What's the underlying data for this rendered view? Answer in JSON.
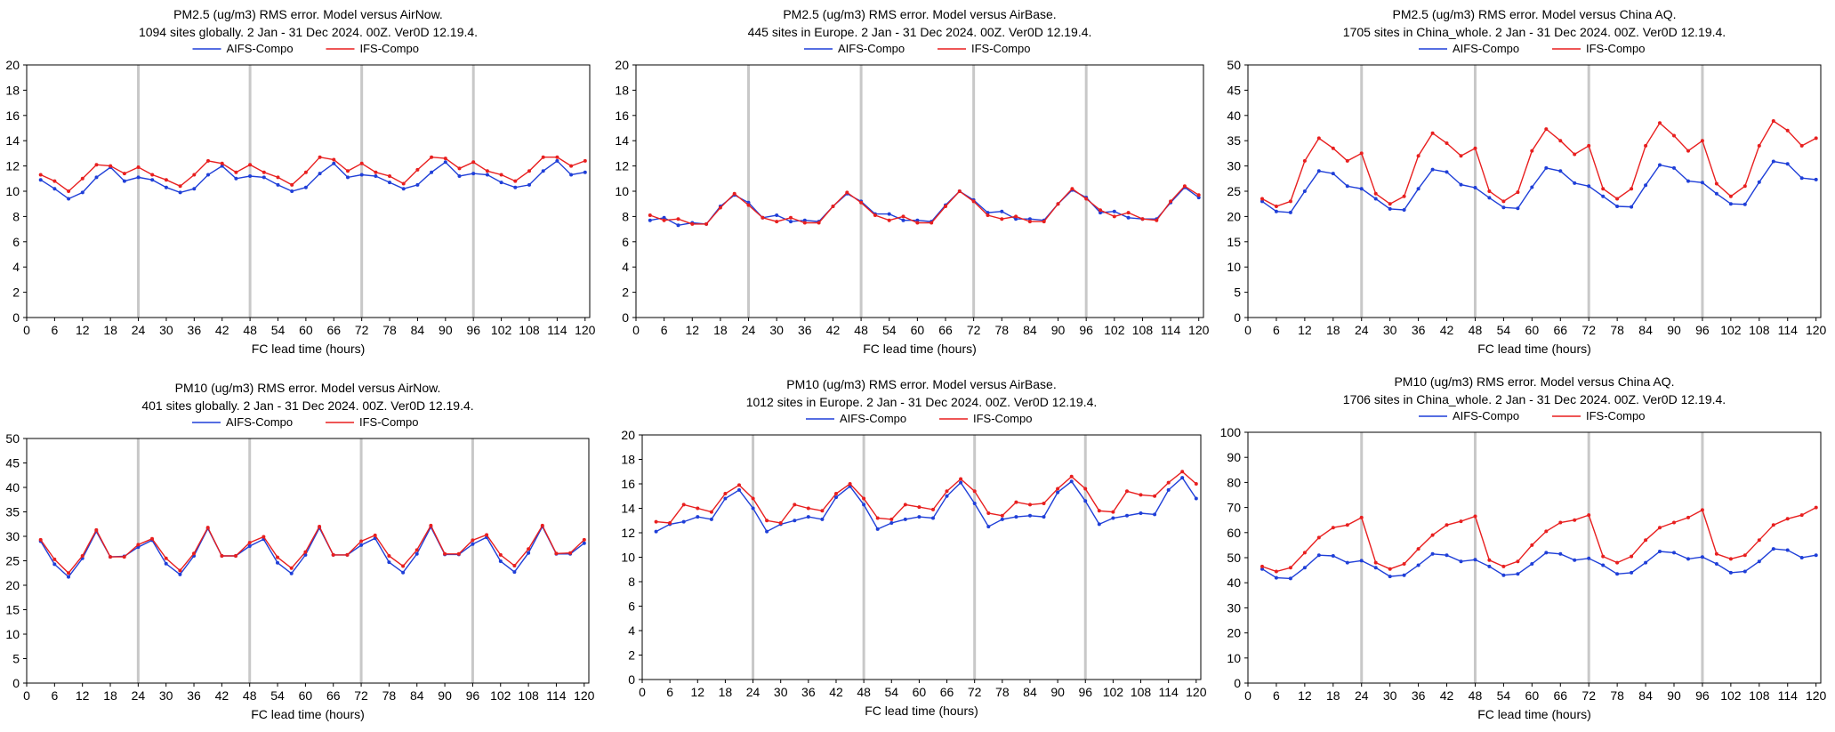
{
  "legend": {
    "aifs": "AIFS-Compo",
    "ifs": "IFS-Compo"
  },
  "colors": {
    "aifs": "#1f3fd8",
    "ifs": "#e81f1f"
  },
  "chart_data": [
    {
      "type": "line",
      "title": "PM2.5 (ug/m3) RMS error. Model versus AirNow.",
      "subtitle": "1094 sites globally. 2 Jan - 31 Dec 2024. 00Z. Ver0D 12.19.4.",
      "xlabel": "FC lead time (hours)",
      "ylabel": "",
      "xlim": [
        0,
        121
      ],
      "ylim": [
        0,
        20
      ],
      "xticks": [
        0,
        6,
        12,
        18,
        24,
        30,
        36,
        42,
        48,
        54,
        60,
        66,
        72,
        78,
        84,
        90,
        96,
        102,
        108,
        114,
        120
      ],
      "yticks": [
        0,
        2,
        4,
        6,
        8,
        10,
        12,
        14,
        16,
        18,
        20
      ],
      "grid": "vertical lines at 24,48,72,96",
      "legend_position": "top-center",
      "x": [
        3,
        6,
        9,
        12,
        15,
        18,
        21,
        24,
        27,
        30,
        33,
        36,
        39,
        42,
        45,
        48,
        51,
        54,
        57,
        60,
        63,
        66,
        69,
        72,
        75,
        78,
        81,
        84,
        87,
        90,
        93,
        96,
        99,
        102,
        105,
        108,
        111,
        114,
        117,
        120
      ],
      "series": [
        {
          "name": "AIFS-Compo",
          "values": [
            10.9,
            10.2,
            9.4,
            9.9,
            11.1,
            11.9,
            10.8,
            11.1,
            10.9,
            10.3,
            9.9,
            10.2,
            11.3,
            12.0,
            11.0,
            11.2,
            11.1,
            10.5,
            10.0,
            10.3,
            11.4,
            12.2,
            11.1,
            11.3,
            11.2,
            10.7,
            10.2,
            10.5,
            11.5,
            12.3,
            11.2,
            11.4,
            11.3,
            10.7,
            10.3,
            10.5,
            11.6,
            12.4,
            11.3,
            11.5
          ]
        },
        {
          "name": "IFS-Compo",
          "values": [
            11.3,
            10.8,
            10.0,
            11.0,
            12.1,
            12.0,
            11.4,
            11.9,
            11.3,
            10.9,
            10.4,
            11.3,
            12.4,
            12.2,
            11.5,
            12.1,
            11.5,
            11.1,
            10.5,
            11.5,
            12.7,
            12.5,
            11.6,
            12.2,
            11.5,
            11.2,
            10.6,
            11.7,
            12.7,
            12.6,
            11.8,
            12.3,
            11.6,
            11.3,
            10.8,
            11.6,
            12.7,
            12.7,
            12.0,
            12.4
          ]
        }
      ]
    },
    {
      "type": "line",
      "title": "PM2.5 (ug/m3) RMS error. Model versus AirBase.",
      "subtitle": "445 sites in Europe. 2 Jan - 31 Dec 2024. 00Z. Ver0D 12.19.4.",
      "xlabel": "FC lead time (hours)",
      "ylabel": "",
      "xlim": [
        0,
        121
      ],
      "ylim": [
        0,
        20
      ],
      "xticks": [
        0,
        6,
        12,
        18,
        24,
        30,
        36,
        42,
        48,
        54,
        60,
        66,
        72,
        78,
        84,
        90,
        96,
        102,
        108,
        114,
        120
      ],
      "yticks": [
        0,
        2,
        4,
        6,
        8,
        10,
        12,
        14,
        16,
        18,
        20
      ],
      "grid": "vertical lines at 24,48,72,96",
      "legend_position": "top-center",
      "x": [
        3,
        6,
        9,
        12,
        15,
        18,
        21,
        24,
        27,
        30,
        33,
        36,
        39,
        42,
        45,
        48,
        51,
        54,
        57,
        60,
        63,
        66,
        69,
        72,
        75,
        78,
        81,
        84,
        87,
        90,
        93,
        96,
        99,
        102,
        105,
        108,
        111,
        114,
        117,
        120
      ],
      "series": [
        {
          "name": "AIFS-Compo",
          "values": [
            7.7,
            7.9,
            7.3,
            7.5,
            7.4,
            8.8,
            9.7,
            9.1,
            7.9,
            8.1,
            7.6,
            7.7,
            7.6,
            8.8,
            9.8,
            9.2,
            8.2,
            8.2,
            7.7,
            7.7,
            7.6,
            8.9,
            10.0,
            9.3,
            8.3,
            8.4,
            7.8,
            7.8,
            7.7,
            9.0,
            10.1,
            9.5,
            8.3,
            8.4,
            7.9,
            7.8,
            7.8,
            9.1,
            10.3,
            9.5
          ]
        },
        {
          "name": "IFS-Compo",
          "values": [
            8.1,
            7.7,
            7.8,
            7.4,
            7.4,
            8.7,
            9.8,
            8.9,
            7.9,
            7.6,
            7.9,
            7.5,
            7.5,
            8.8,
            9.9,
            9.1,
            8.1,
            7.7,
            8.0,
            7.5,
            7.5,
            8.8,
            10.0,
            9.2,
            8.1,
            7.8,
            8.0,
            7.6,
            7.6,
            9.0,
            10.2,
            9.4,
            8.5,
            8.0,
            8.3,
            7.8,
            7.7,
            9.2,
            10.4,
            9.7
          ]
        }
      ]
    },
    {
      "type": "line",
      "title": "PM2.5 (ug/m3) RMS error. Model versus China AQ.",
      "subtitle": "1705 sites in China_whole. 2 Jan - 31 Dec 2024. 00Z. Ver0D 12.19.4.",
      "xlabel": "FC lead time (hours)",
      "ylabel": "",
      "xlim": [
        0,
        121
      ],
      "ylim": [
        0,
        50
      ],
      "xticks": [
        0,
        6,
        12,
        18,
        24,
        30,
        36,
        42,
        48,
        54,
        60,
        66,
        72,
        78,
        84,
        90,
        96,
        102,
        108,
        114,
        120
      ],
      "yticks": [
        0,
        5,
        10,
        15,
        20,
        25,
        30,
        35,
        40,
        45,
        50
      ],
      "grid": "vertical lines at 24,48,72,96",
      "legend_position": "top-center",
      "x": [
        3,
        6,
        9,
        12,
        15,
        18,
        21,
        24,
        27,
        30,
        33,
        36,
        39,
        42,
        45,
        48,
        51,
        54,
        57,
        60,
        63,
        66,
        69,
        72,
        75,
        78,
        81,
        84,
        87,
        90,
        93,
        96,
        99,
        102,
        105,
        108,
        111,
        114,
        117,
        120
      ],
      "series": [
        {
          "name": "AIFS-Compo",
          "values": [
            23.0,
            21.0,
            20.8,
            25.0,
            29.0,
            28.5,
            26.0,
            25.5,
            23.5,
            21.5,
            21.3,
            25.5,
            29.3,
            28.8,
            26.3,
            25.7,
            23.7,
            21.8,
            21.6,
            25.8,
            29.6,
            29.0,
            26.6,
            26.0,
            24.0,
            22.0,
            21.9,
            26.2,
            30.2,
            29.6,
            27.0,
            26.7,
            24.5,
            22.5,
            22.4,
            26.8,
            30.9,
            30.4,
            27.6,
            27.3
          ]
        },
        {
          "name": "IFS-Compo",
          "values": [
            23.5,
            22.0,
            23.0,
            31.0,
            35.5,
            33.5,
            31.0,
            32.5,
            24.5,
            22.5,
            24.0,
            32.0,
            36.5,
            34.5,
            32.0,
            33.5,
            25.0,
            23.0,
            24.8,
            33.0,
            37.3,
            35.0,
            32.3,
            34.0,
            25.5,
            23.5,
            25.5,
            34.0,
            38.5,
            36.0,
            33.0,
            35.0,
            26.5,
            24.0,
            26.0,
            34.0,
            38.9,
            37.0,
            34.0,
            35.5
          ]
        }
      ]
    },
    {
      "type": "line",
      "title": "PM10 (ug/m3) RMS error. Model versus AirNow.",
      "subtitle": "401 sites globally. 2 Jan - 31 Dec 2024. 00Z. Ver0D 12.19.4.",
      "xlabel": "FC lead time (hours)",
      "ylabel": "",
      "xlim": [
        0,
        121
      ],
      "ylim": [
        0,
        50
      ],
      "xticks": [
        0,
        6,
        12,
        18,
        24,
        30,
        36,
        42,
        48,
        54,
        60,
        66,
        72,
        78,
        84,
        90,
        96,
        102,
        108,
        114,
        120
      ],
      "yticks": [
        0,
        5,
        10,
        15,
        20,
        25,
        30,
        35,
        40,
        45,
        50
      ],
      "grid": "vertical lines at 24,48,72,96",
      "legend_position": "top-center",
      "x": [
        3,
        6,
        9,
        12,
        15,
        18,
        21,
        24,
        27,
        30,
        33,
        36,
        39,
        42,
        45,
        48,
        51,
        54,
        57,
        60,
        63,
        66,
        69,
        72,
        75,
        78,
        81,
        84,
        87,
        90,
        93,
        96,
        99,
        102,
        105,
        108,
        111,
        114,
        117,
        120
      ],
      "series": [
        {
          "name": "AIFS-Compo",
          "values": [
            29.0,
            24.3,
            21.7,
            25.5,
            31.0,
            25.8,
            25.9,
            27.8,
            29.2,
            24.4,
            22.2,
            26.0,
            31.6,
            26.0,
            26.0,
            28.0,
            29.4,
            24.6,
            22.4,
            26.2,
            31.7,
            26.2,
            26.2,
            28.2,
            29.6,
            24.7,
            22.6,
            26.4,
            31.9,
            26.3,
            26.3,
            28.4,
            29.8,
            24.9,
            22.7,
            26.6,
            32.0,
            26.4,
            26.4,
            28.6
          ]
        },
        {
          "name": "IFS-Compo",
          "values": [
            29.3,
            25.3,
            22.5,
            26.0,
            31.3,
            25.8,
            25.8,
            28.3,
            29.5,
            25.5,
            23.0,
            26.5,
            31.8,
            26.0,
            26.0,
            28.7,
            29.9,
            25.7,
            23.5,
            26.8,
            32.0,
            26.2,
            26.2,
            29.0,
            30.2,
            26.0,
            23.9,
            27.2,
            32.2,
            26.4,
            26.4,
            29.2,
            30.3,
            26.2,
            24.0,
            27.4,
            32.2,
            26.5,
            26.6,
            29.3
          ]
        }
      ]
    },
    {
      "type": "line",
      "title": "PM10 (ug/m3) RMS error. Model versus AirBase.",
      "subtitle": "1012 sites in Europe. 2 Jan - 31 Dec 2024. 00Z. Ver0D 12.19.4.",
      "xlabel": "FC lead time (hours)",
      "ylabel": "",
      "xlim": [
        0,
        121
      ],
      "ylim": [
        0,
        20
      ],
      "xticks": [
        0,
        6,
        12,
        18,
        24,
        30,
        36,
        42,
        48,
        54,
        60,
        66,
        72,
        78,
        84,
        90,
        96,
        102,
        108,
        114,
        120
      ],
      "yticks": [
        0,
        2,
        4,
        6,
        8,
        10,
        12,
        14,
        16,
        18,
        20
      ],
      "grid": "vertical lines at 24,48,72,96",
      "legend_position": "top-center",
      "x": [
        3,
        6,
        9,
        12,
        15,
        18,
        21,
        24,
        27,
        30,
        33,
        36,
        39,
        42,
        45,
        48,
        51,
        54,
        57,
        60,
        63,
        66,
        69,
        72,
        75,
        78,
        81,
        84,
        87,
        90,
        93,
        96,
        99,
        102,
        105,
        108,
        111,
        114,
        117,
        120
      ],
      "series": [
        {
          "name": "AIFS-Compo",
          "values": [
            12.1,
            12.7,
            12.9,
            13.3,
            13.1,
            14.8,
            15.5,
            14.0,
            12.1,
            12.7,
            13.0,
            13.3,
            13.1,
            14.9,
            15.8,
            14.3,
            12.3,
            12.8,
            13.1,
            13.3,
            13.2,
            15.0,
            16.1,
            14.4,
            12.5,
            13.1,
            13.3,
            13.4,
            13.3,
            15.3,
            16.2,
            14.6,
            12.7,
            13.2,
            13.4,
            13.6,
            13.5,
            15.5,
            16.5,
            14.8
          ]
        },
        {
          "name": "IFS-Compo",
          "values": [
            12.9,
            12.8,
            14.3,
            14.0,
            13.7,
            15.2,
            15.9,
            14.8,
            13.0,
            12.8,
            14.3,
            14.0,
            13.8,
            15.2,
            16.0,
            14.8,
            13.2,
            13.1,
            14.3,
            14.1,
            13.9,
            15.4,
            16.4,
            15.4,
            13.6,
            13.4,
            14.5,
            14.3,
            14.4,
            15.6,
            16.6,
            15.6,
            13.8,
            13.7,
            15.4,
            15.1,
            15.0,
            16.1,
            17.0,
            16.0
          ]
        }
      ]
    },
    {
      "type": "line",
      "title": "PM10 (ug/m3) RMS error. Model versus China AQ.",
      "subtitle": "1706 sites in China_whole. 2 Jan - 31 Dec 2024. 00Z. Ver0D 12.19.4.",
      "xlabel": "FC lead time (hours)",
      "ylabel": "",
      "xlim": [
        0,
        121
      ],
      "ylim": [
        0,
        100
      ],
      "xticks": [
        0,
        6,
        12,
        18,
        24,
        30,
        36,
        42,
        48,
        54,
        60,
        66,
        72,
        78,
        84,
        90,
        96,
        102,
        108,
        114,
        120
      ],
      "yticks": [
        0,
        10,
        20,
        30,
        40,
        50,
        60,
        70,
        80,
        90,
        100
      ],
      "grid": "vertical lines at 24,48,72,96",
      "legend_position": "top-center",
      "x": [
        3,
        6,
        9,
        12,
        15,
        18,
        21,
        24,
        27,
        30,
        33,
        36,
        39,
        42,
        45,
        48,
        51,
        54,
        57,
        60,
        63,
        66,
        69,
        72,
        75,
        78,
        81,
        84,
        87,
        90,
        93,
        96,
        99,
        102,
        105,
        108,
        111,
        114,
        117,
        120
      ],
      "series": [
        {
          "name": "AIFS-Compo",
          "values": [
            45.5,
            42.0,
            41.7,
            46.0,
            51.0,
            50.7,
            48.0,
            48.8,
            46.0,
            42.5,
            43.0,
            47.0,
            51.5,
            51.0,
            48.5,
            49.2,
            46.5,
            43.0,
            43.5,
            47.5,
            52.0,
            51.5,
            49.0,
            49.7,
            47.0,
            43.5,
            44.0,
            48.0,
            52.5,
            52.0,
            49.5,
            50.3,
            47.5,
            44.0,
            44.5,
            48.5,
            53.5,
            53.0,
            50.0,
            51.0
          ]
        },
        {
          "name": "IFS-Compo",
          "values": [
            46.5,
            44.5,
            46.0,
            52.0,
            58.0,
            62.0,
            63.0,
            66.0,
            48.0,
            45.5,
            47.5,
            53.5,
            59.0,
            63.0,
            64.5,
            66.5,
            49.0,
            46.5,
            48.5,
            55.0,
            60.5,
            64.0,
            65.0,
            67.0,
            50.5,
            48.0,
            50.5,
            57.0,
            62.0,
            64.0,
            66.0,
            69.0,
            51.5,
            49.5,
            51.0,
            57.0,
            63.0,
            65.5,
            67.0,
            70.0
          ]
        }
      ]
    }
  ]
}
